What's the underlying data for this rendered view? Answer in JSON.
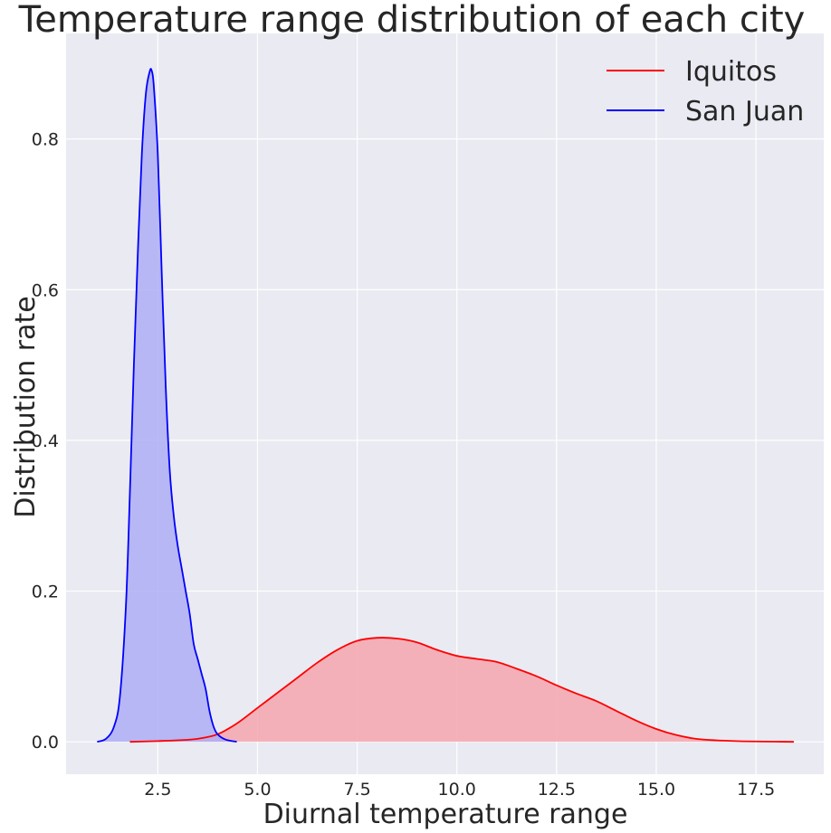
{
  "chart_data": {
    "type": "area",
    "title": "Temperature range distribution of each city",
    "xlabel": "Diurnal temperature range",
    "ylabel": "Distribution rate",
    "xlim": [
      0.2,
      19.2
    ],
    "ylim": [
      -0.043,
      0.94
    ],
    "x_ticks": [
      2.5,
      5.0,
      7.5,
      10.0,
      12.5,
      15.0,
      17.5
    ],
    "y_ticks": [
      0.0,
      0.2,
      0.4,
      0.6,
      0.8
    ],
    "x_tick_labels": [
      "2.5",
      "5.0",
      "7.5",
      "10.0",
      "12.5",
      "15.0",
      "17.5"
    ],
    "y_tick_labels": [
      "0.0",
      "0.2",
      "0.4",
      "0.6",
      "0.8"
    ],
    "grid": true,
    "legend_position": "top-right",
    "background": "#EAEAF2",
    "series": [
      {
        "name": "Iquitos",
        "color": "#FF0000",
        "fill": "#F4A6AE",
        "x": [
          1.8,
          2.5,
          3.0,
          3.5,
          4.0,
          4.5,
          5.0,
          5.5,
          6.0,
          6.5,
          7.0,
          7.5,
          8.0,
          8.5,
          9.0,
          9.5,
          10.0,
          10.5,
          11.0,
          11.5,
          12.0,
          12.5,
          13.0,
          13.5,
          14.0,
          14.5,
          15.0,
          15.5,
          16.0,
          16.5,
          17.0,
          17.5,
          18.0,
          18.45
        ],
        "y": [
          0.0,
          0.001,
          0.002,
          0.004,
          0.01,
          0.025,
          0.045,
          0.065,
          0.085,
          0.105,
          0.122,
          0.134,
          0.138,
          0.137,
          0.132,
          0.122,
          0.114,
          0.11,
          0.106,
          0.097,
          0.087,
          0.075,
          0.064,
          0.054,
          0.041,
          0.028,
          0.017,
          0.009,
          0.004,
          0.002,
          0.001,
          0.0005,
          0.0002,
          0.0
        ]
      },
      {
        "name": "San Juan",
        "color": "#0000FF",
        "fill": "#ADAEF5",
        "x": [
          0.98,
          1.2,
          1.4,
          1.55,
          1.7,
          1.8,
          1.9,
          2.0,
          2.1,
          2.2,
          2.3,
          2.35,
          2.4,
          2.5,
          2.6,
          2.7,
          2.8,
          2.9,
          3.0,
          3.1,
          3.2,
          3.3,
          3.4,
          3.5,
          3.6,
          3.7,
          3.8,
          3.9,
          4.0,
          4.2,
          4.48
        ],
        "y": [
          0.0,
          0.004,
          0.02,
          0.06,
          0.18,
          0.33,
          0.5,
          0.65,
          0.78,
          0.86,
          0.89,
          0.89,
          0.87,
          0.78,
          0.62,
          0.47,
          0.36,
          0.3,
          0.26,
          0.23,
          0.2,
          0.17,
          0.13,
          0.11,
          0.09,
          0.07,
          0.04,
          0.02,
          0.01,
          0.003,
          0.0
        ]
      }
    ]
  }
}
